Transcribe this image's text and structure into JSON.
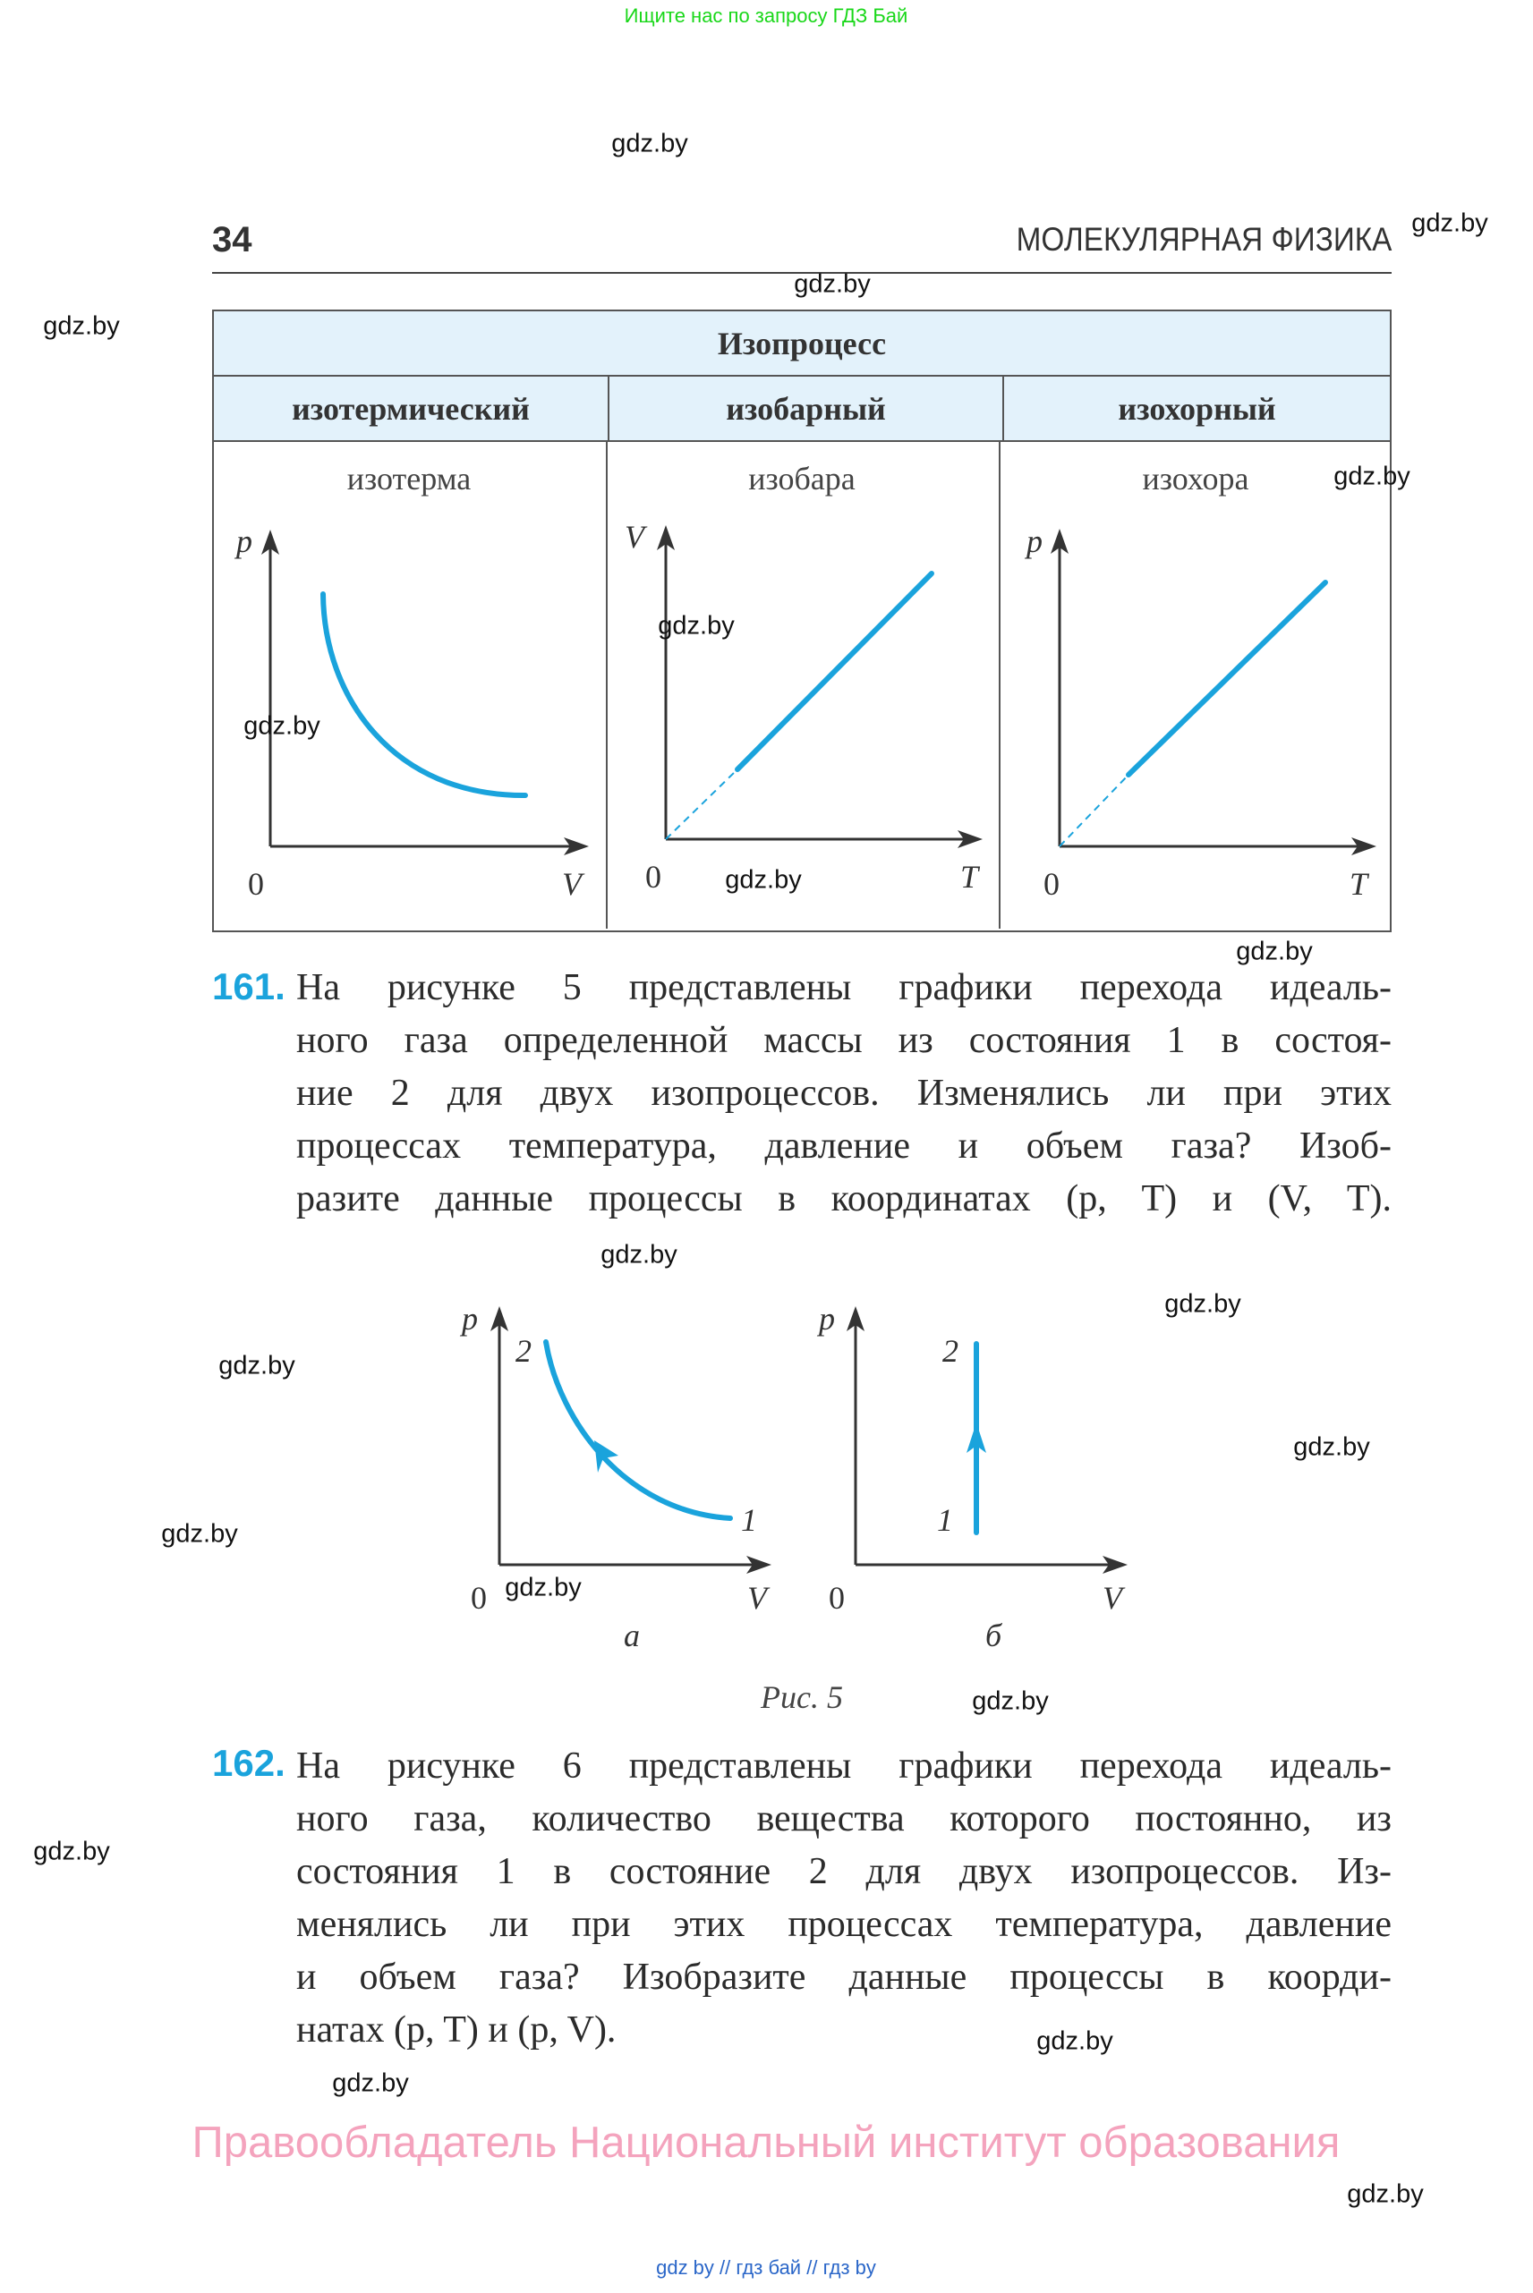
{
  "top_ad": "Ищите нас по запросу ГДЗ Бай",
  "watermark": "gdz.by",
  "header": {
    "page_number": "34",
    "chapter": "МОЛЕКУЛЯРНАЯ ФИЗИКА"
  },
  "table": {
    "title": "Изопроцесс",
    "columns": [
      {
        "name": "изотермический",
        "curve": "изотерма",
        "y": "p",
        "x": "V",
        "origin": "0"
      },
      {
        "name": "изобарный",
        "curve": "изобара",
        "y": "V",
        "x": "T",
        "origin": "0"
      },
      {
        "name": "изохорный",
        "curve": "изохора",
        "y": "p",
        "x": "T",
        "origin": "0"
      }
    ]
  },
  "p161": {
    "number": "161.",
    "lines": [
      "На рисунке 5 представлены графики перехода идеаль-",
      "ного газа определенной массы из состояния 1 в состоя-",
      "ние 2 для двух изопроцессов. Изменялись ли при этих",
      "процессах температура, давление и объем газа? Изоб-",
      "разите данные процессы в координатах (p, T) и (V, T)."
    ]
  },
  "fig5": {
    "a": {
      "y": "p",
      "x": "V",
      "origin": "0",
      "point1": "1",
      "point2": "2",
      "label": "а"
    },
    "b": {
      "y": "p",
      "x": "V",
      "origin": "0",
      "point1": "1",
      "point2": "2",
      "label": "б"
    },
    "caption": "Рис. 5"
  },
  "p162": {
    "number": "162.",
    "lines": [
      "На рисунке 6 представлены графики перехода идеаль-",
      "ного газа, количество вещества которого постоянно, из",
      "состояния 1 в состояние 2 для двух изопроцессов. Из-",
      "менялись ли при этих процессах температура, давление",
      "и объем газа? Изобразите данные процессы в коорди-",
      "натах (p, T) и (p, V)."
    ]
  },
  "copyright": "Правообладатель Национальный институт образования",
  "footer_links": [
    "gdz by",
    "гдз бай",
    "гдз by"
  ],
  "footer_sep": "//",
  "colors": {
    "accent": "#1aa3dc",
    "header_bg": "#e3f2fb",
    "pink": "#f4a3bd"
  }
}
